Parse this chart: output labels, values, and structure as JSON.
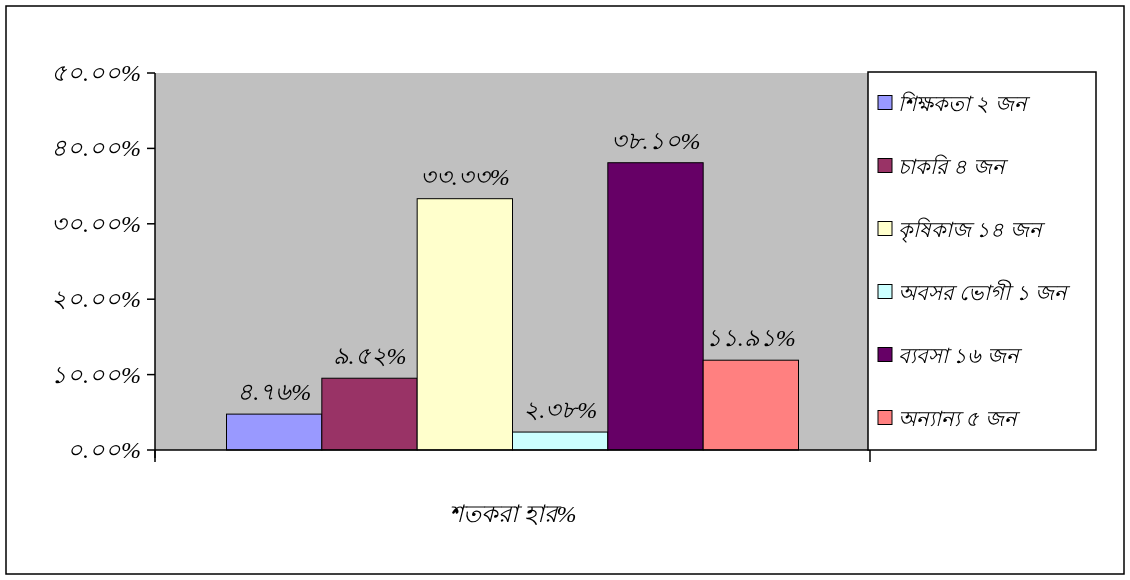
{
  "chart_data": {
    "type": "bar",
    "categories": [
      "শতকরা হার%"
    ],
    "ylim": [
      0,
      50
    ],
    "yticks": [
      {
        "value": 0,
        "label": "০.০০%"
      },
      {
        "value": 10,
        "label": "১০.০০%"
      },
      {
        "value": 20,
        "label": "২০.০০%"
      },
      {
        "value": 30,
        "label": "৩০.০০%"
      },
      {
        "value": 40,
        "label": "৪০.০০%"
      },
      {
        "value": 50,
        "label": "৫০.০০%"
      }
    ],
    "grid": false,
    "legend": "right",
    "series": [
      {
        "name": "শিক্ষকতা ২ জন",
        "color": "#9999ff",
        "values": [
          4.76
        ],
        "value_labels": [
          "৪.৭৬%"
        ]
      },
      {
        "name": "চাকরি ৪ জন",
        "color": "#993366",
        "values": [
          9.52
        ],
        "value_labels": [
          "৯.৫২%"
        ]
      },
      {
        "name": "কৃষিকাজ ১৪ জন",
        "color": "#ffffcc",
        "values": [
          33.33
        ],
        "value_labels": [
          "৩৩.৩৩%"
        ]
      },
      {
        "name": "অবসর ভোগী ১ জন",
        "color": "#ccffff",
        "values": [
          2.38
        ],
        "value_labels": [
          "২.৩৮%"
        ]
      },
      {
        "name": "ব্যবসা ১৬ জন",
        "color": "#660066",
        "values": [
          38.1
        ],
        "value_labels": [
          "৩৮.১০%"
        ]
      },
      {
        "name": "অন্যান্য ৫ জন",
        "color": "#ff8080",
        "values": [
          11.91
        ],
        "value_labels": [
          "১১.৯১%"
        ]
      }
    ]
  }
}
